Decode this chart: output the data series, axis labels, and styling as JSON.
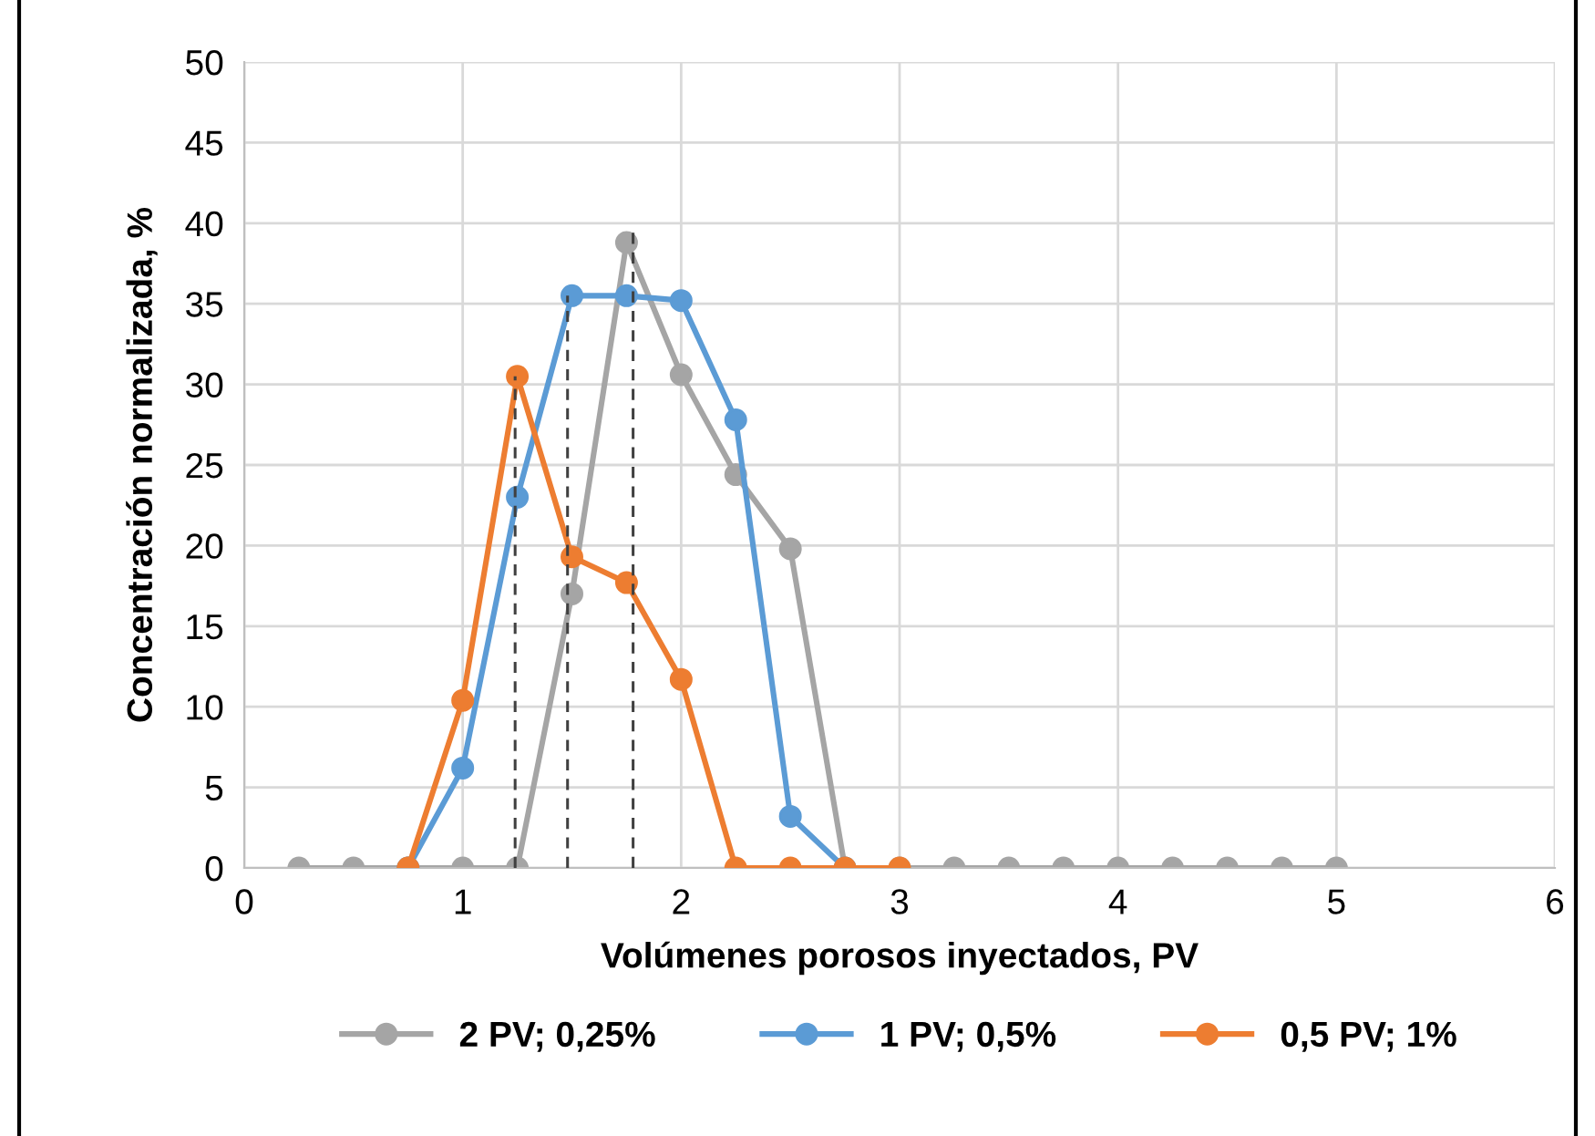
{
  "chart_data": {
    "type": "line",
    "xlabel": "Volúmenes porosos inyectados, PV",
    "ylabel": "Concentración normalizada, %",
    "xlim": [
      0,
      6
    ],
    "xticks": [
      0,
      1,
      2,
      3,
      4,
      5,
      6
    ],
    "ylim": [
      0,
      50
    ],
    "yticks": [
      0,
      5,
      10,
      15,
      20,
      25,
      30,
      35,
      40,
      45,
      50
    ],
    "grid": true,
    "legend": "bottom",
    "marker": "circle",
    "line_style": "solid",
    "series": [
      {
        "name": "2 PV; 0,25%",
        "color": "#a5a5a5",
        "x": [
          0.25,
          0.5,
          0.75,
          1,
          1.25,
          1.5,
          1.75,
          2,
          2.25,
          2.5,
          2.75,
          3,
          3.25,
          3.5,
          3.75,
          4,
          4.25,
          4.5,
          4.75,
          5
        ],
        "values": [
          0,
          0,
          0,
          0,
          0,
          17,
          38.8,
          30.6,
          24.4,
          19.8,
          0,
          0,
          0,
          0,
          0,
          0,
          0,
          0,
          0,
          0
        ]
      },
      {
        "name": "1 PV; 0,5%",
        "color": "#5b9bd5",
        "x": [
          0.75,
          1,
          1.25,
          1.5,
          1.75,
          2,
          2.25,
          2.5,
          2.75
        ],
        "values": [
          0,
          6.2,
          23,
          35.5,
          35.5,
          35.2,
          27.8,
          3.2,
          0
        ]
      },
      {
        "name": "0,5 PV; 1%",
        "color": "#ed7d31",
        "x": [
          0.75,
          1,
          1.25,
          1.5,
          1.75,
          2,
          2.25,
          2.5,
          2.75,
          3
        ],
        "values": [
          0,
          10.4,
          30.5,
          19.3,
          17.7,
          11.7,
          0,
          0,
          0,
          0
        ]
      },
      {
        "type": "line",
        "color": "#404040",
        "line_style": "dashed",
        "marker": "none",
        "x": [
          1.24,
          1.24
        ],
        "values": [
          0,
          30.5
        ]
      },
      {
        "type": "line",
        "color": "#404040",
        "line_style": "dashed",
        "marker": "none",
        "x": [
          1.48,
          1.48
        ],
        "values": [
          0,
          35.5
        ]
      },
      {
        "type": "line",
        "color": "#404040",
        "line_style": "dashed",
        "marker": "none",
        "x": [
          1.78,
          1.78
        ],
        "values": [
          0,
          39.5
        ]
      }
    ]
  }
}
